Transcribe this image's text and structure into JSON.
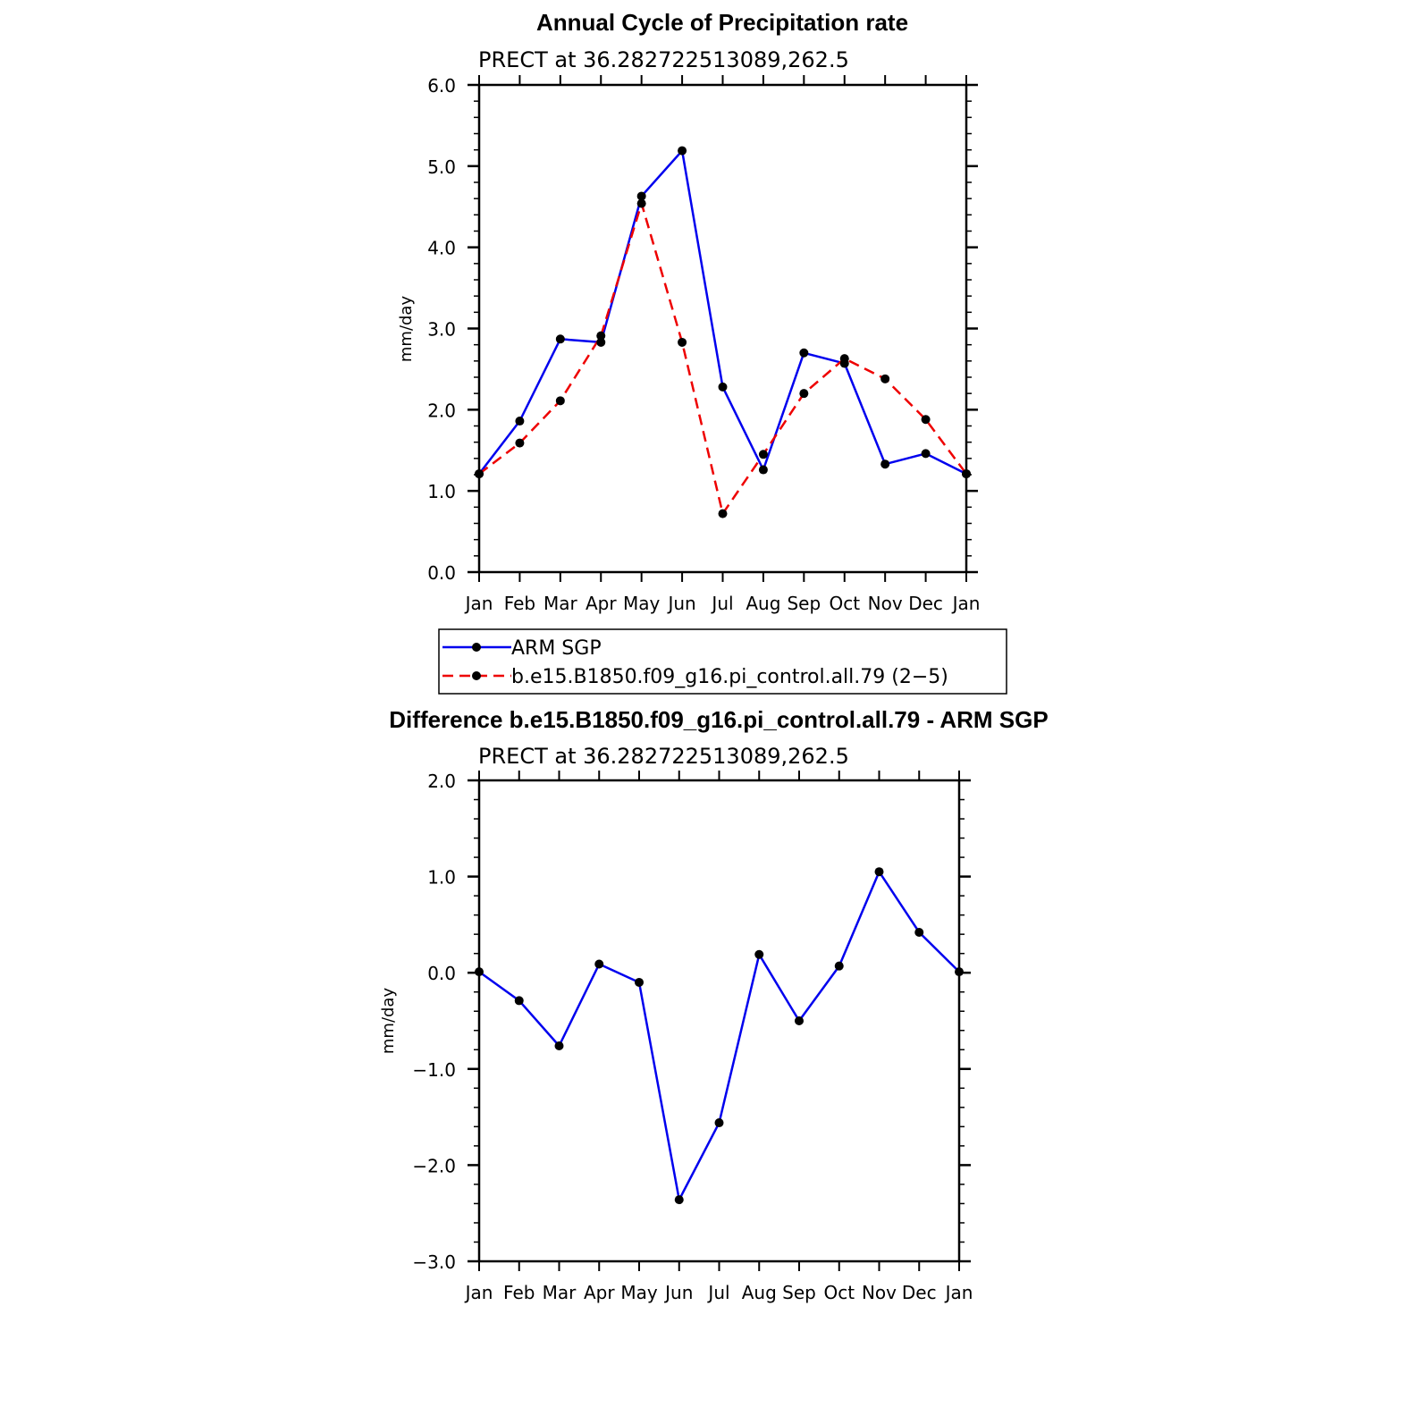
{
  "chart_data": [
    {
      "type": "line",
      "title": "Annual Cycle of Precipitation rate",
      "subtitle": "PRECT at 36.282722513089,262.5",
      "xlabel": "",
      "ylabel": "mm/day",
      "categories": [
        "Jan",
        "Feb",
        "Mar",
        "Apr",
        "May",
        "Jun",
        "Jul",
        "Aug",
        "Sep",
        "Oct",
        "Nov",
        "Dec",
        "Jan"
      ],
      "ylim": [
        0,
        6
      ],
      "yticks": [
        0,
        1,
        2,
        3,
        4,
        5,
        6
      ],
      "ytick_labels": [
        "0.0",
        "1.0",
        "2.0",
        "3.0",
        "4.0",
        "5.0",
        "6.0"
      ],
      "series": [
        {
          "name": "ARM SGP",
          "color": "#0000ee",
          "dash": "solid",
          "values": [
            1.21,
            1.86,
            2.87,
            2.83,
            4.63,
            5.19,
            2.28,
            1.26,
            2.7,
            2.57,
            1.33,
            1.46,
            1.21
          ]
        },
        {
          "name": "b.e15.B1850.f09_g16.pi_control.all.79 (2−5)",
          "color": "#ee0000",
          "dash": "dashed",
          "values": [
            1.21,
            1.59,
            2.11,
            2.91,
            4.54,
            2.83,
            0.72,
            1.45,
            2.2,
            2.63,
            2.38,
            1.88,
            1.21
          ]
        }
      ],
      "legend": {
        "position": "below",
        "entries": [
          "ARM SGP",
          "b.e15.B1850.f09_g16.pi_control.all.79 (2−5)"
        ]
      }
    },
    {
      "type": "line",
      "title": "Difference b.e15.B1850.f09_g16.pi_control.all.79 - ARM SGP",
      "subtitle": "PRECT at 36.282722513089,262.5",
      "xlabel": "",
      "ylabel": "mm/day",
      "categories": [
        "Jan",
        "Feb",
        "Mar",
        "Apr",
        "May",
        "Jun",
        "Jul",
        "Aug",
        "Sep",
        "Oct",
        "Nov",
        "Dec",
        "Jan"
      ],
      "ylim": [
        -3,
        2
      ],
      "yticks": [
        -3,
        -2,
        -1,
        0,
        1,
        2
      ],
      "ytick_labels": [
        "−3.0",
        "−2.0",
        "−1.0",
        "0.0",
        "1.0",
        "2.0"
      ],
      "series": [
        {
          "name": "Difference",
          "color": "#0000ee",
          "dash": "solid",
          "values": [
            0.01,
            -0.29,
            -0.76,
            0.09,
            -0.1,
            -2.36,
            -1.56,
            0.19,
            -0.5,
            0.07,
            1.05,
            0.42,
            0.01
          ]
        }
      ]
    }
  ]
}
